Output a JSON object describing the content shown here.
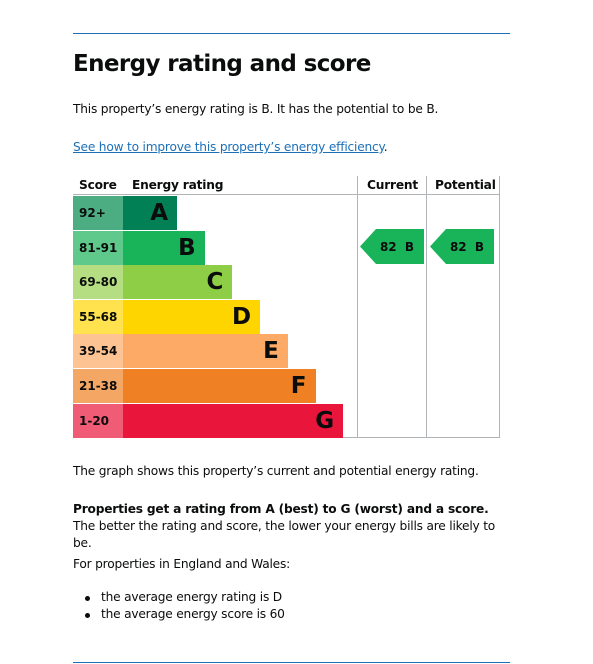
{
  "heading": "Energy rating and score",
  "intro": "This property’s energy rating is B. It has the potential to be B.",
  "improve_link": "See how to improve this property’s energy efficiency",
  "improve_link_suffix": ".",
  "graph": {
    "headers": {
      "score": "Score",
      "energy_rating": "Energy rating",
      "current": "Current",
      "potential": "Potential"
    },
    "bands": [
      {
        "score": "92+",
        "letter": "A",
        "bar_color": "#008054",
        "score_color": "#4dad82",
        "text_color": "#0b0c0c"
      },
      {
        "score": "81-91",
        "letter": "B",
        "bar_color": "#19b459",
        "score_color": "#5ec98b",
        "text_color": "#0b0c0c"
      },
      {
        "score": "69-80",
        "letter": "C",
        "bar_color": "#8dce46",
        "score_color": "#b5de83",
        "text_color": "#0b0c0c"
      },
      {
        "score": "55-68",
        "letter": "D",
        "bar_color": "#ffd500",
        "score_color": "#ffe24d",
        "text_color": "#0b0c0c"
      },
      {
        "score": "39-54",
        "letter": "E",
        "bar_color": "#fcaa65",
        "score_color": "#fdc393",
        "text_color": "#0b0c0c"
      },
      {
        "score": "21-38",
        "letter": "F",
        "bar_color": "#ef8023",
        "score_color": "#f4a665",
        "text_color": "#0b0c0c"
      },
      {
        "score": "1-20",
        "letter": "G",
        "bar_color": "#e9153b",
        "score_color": "#f05b76",
        "text_color": "#0b0c0c"
      }
    ],
    "current": {
      "score": "82",
      "letter": "B",
      "color": "#19b459"
    },
    "potential": {
      "score": "82",
      "letter": "B",
      "color": "#19b459"
    }
  },
  "graph_caption": "The graph shows this property’s current and potential energy rating.",
  "rating_bold": "Properties get a rating from A (best) to G (worst) and a score.",
  "rating_rest": " The better the rating and score, the lower your energy bills are likely to be.",
  "england_wales": "For properties in England and Wales:",
  "averages": [
    "the average energy rating is D",
    "the average energy score is 60"
  ]
}
